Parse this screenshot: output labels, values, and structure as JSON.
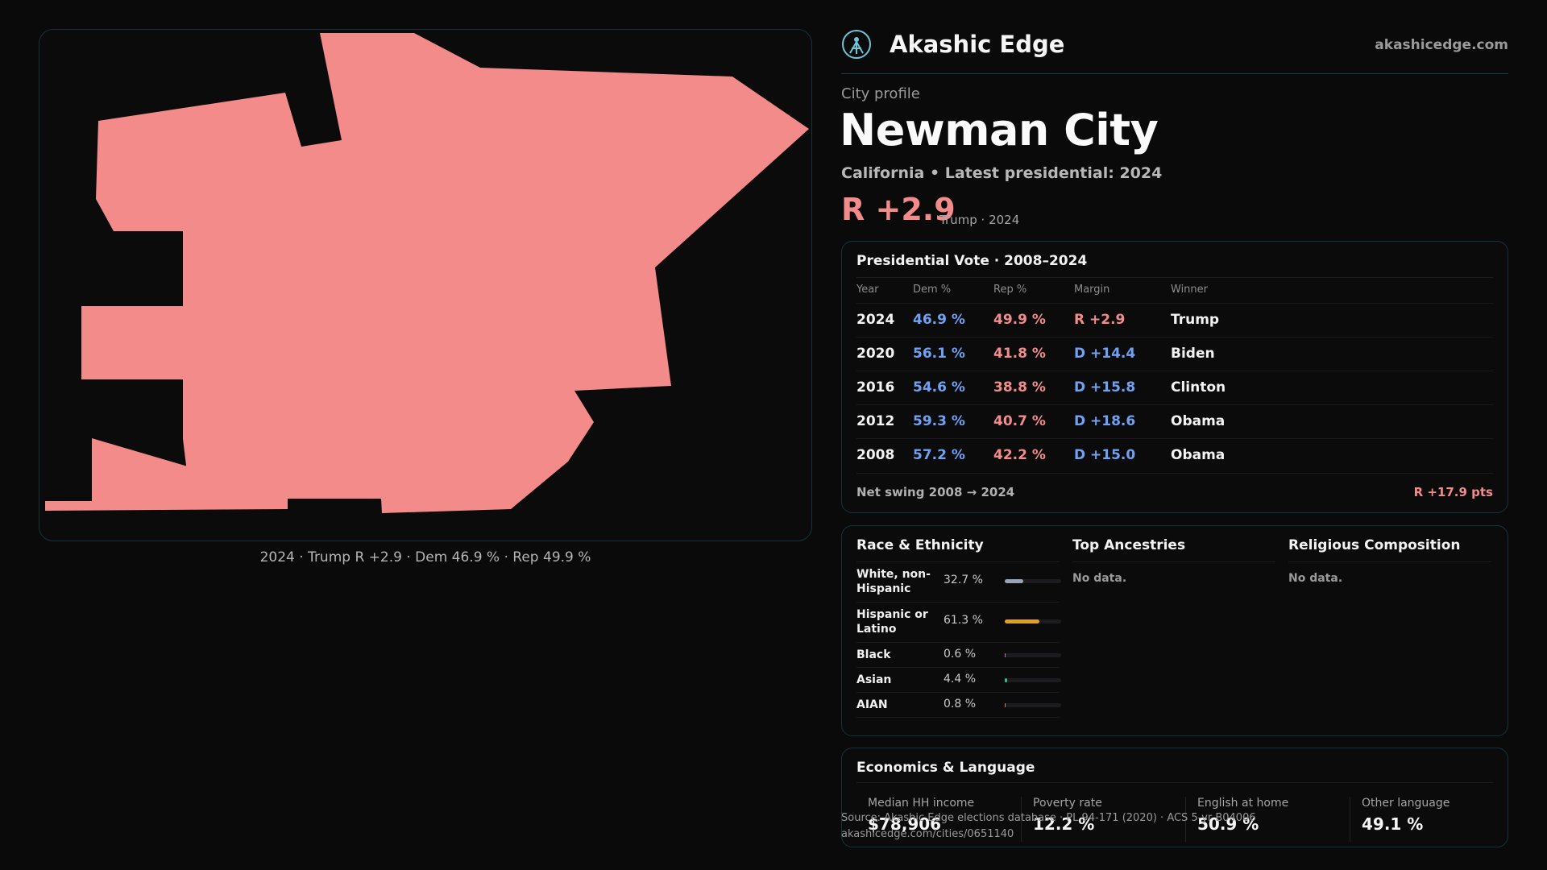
{
  "brand": {
    "name": "Akashic Edge",
    "site": "akashicedge.com"
  },
  "profile": {
    "kicker": "City profile",
    "city": "Newman City",
    "subline": "California • Latest presidential: 2024",
    "margin": "R +2.9",
    "margin_sub": "Trump · 2024"
  },
  "map": {
    "fill_color": "#f28b89",
    "caption": "2024 · Trump R +2.9 · Dem 46.9 % · Rep 49.9 %"
  },
  "vote_table": {
    "title": "Presidential Vote · 2008–2024",
    "headers": {
      "year": "Year",
      "dem": "Dem %",
      "rep": "Rep %",
      "margin": "Margin",
      "winner": "Winner"
    },
    "rows": [
      {
        "year": "2024",
        "dem": "46.9 %",
        "rep": "49.9 %",
        "margin": "R +2.9",
        "party": "R",
        "winner": "Trump"
      },
      {
        "year": "2020",
        "dem": "56.1 %",
        "rep": "41.8 %",
        "margin": "D +14.4",
        "party": "D",
        "winner": "Biden"
      },
      {
        "year": "2016",
        "dem": "54.6 %",
        "rep": "38.8 %",
        "margin": "D +15.8",
        "party": "D",
        "winner": "Clinton"
      },
      {
        "year": "2012",
        "dem": "59.3 %",
        "rep": "40.7 %",
        "margin": "D +18.6",
        "party": "D",
        "winner": "Obama"
      },
      {
        "year": "2008",
        "dem": "57.2 %",
        "rep": "42.2 %",
        "margin": "D +15.0",
        "party": "D",
        "winner": "Obama"
      }
    ],
    "swing_label": "Net swing 2008 → 2024",
    "swing_value": "R +17.9 pts"
  },
  "race": {
    "title": "Race & Ethnicity",
    "rows": [
      {
        "name": "White, non-Hispanic",
        "pct": "32.7 %",
        "value": 32.7,
        "color": "#9aa4b8"
      },
      {
        "name": "Hispanic or Latino",
        "pct": "61.3 %",
        "value": 61.3,
        "color": "#e0a020"
      },
      {
        "name": "Black",
        "pct": "0.6 %",
        "value": 0.6,
        "color": "#c070d0"
      },
      {
        "name": "Asian",
        "pct": "4.4 %",
        "value": 4.4,
        "color": "#2fbf8a"
      },
      {
        "name": "AIAN",
        "pct": "0.8 %",
        "value": 0.8,
        "color": "#d09050"
      }
    ]
  },
  "ancestries": {
    "title": "Top Ancestries",
    "empty": "No data."
  },
  "religion": {
    "title": "Religious Composition",
    "empty": "No data."
  },
  "economics": {
    "title": "Economics & Language",
    "stats": [
      {
        "label": "Median HH income",
        "value": "$78,906"
      },
      {
        "label": "Poverty rate",
        "value": "12.2 %"
      },
      {
        "label": "English at home",
        "value": "50.9 %"
      },
      {
        "label": "Other language",
        "value": "49.1 %"
      }
    ]
  },
  "source": {
    "line1": "Source: Akashic Edge elections database · PL 94-171 (2020) · ACS 5-yr B04006",
    "line2": "akashicedge.com/cities/0651140"
  }
}
